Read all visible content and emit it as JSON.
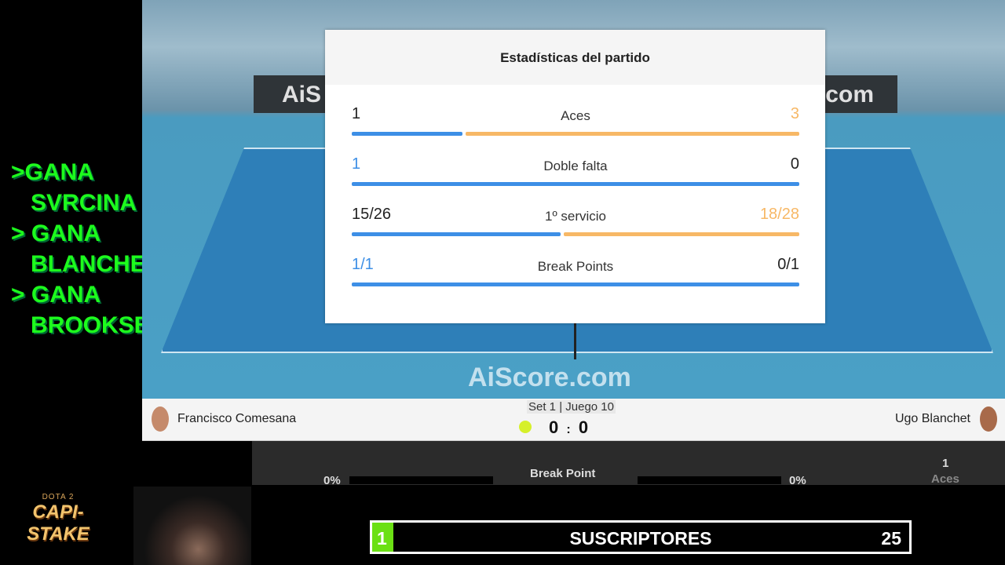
{
  "stream": {
    "picks": [
      ">GANA",
      "   SVRCINA",
      "> GANA",
      "   BLANCHET",
      "> GANA",
      "   BROOKSBY"
    ],
    "logo": {
      "top": "DOTA 2",
      "name": "CAPI-STAKE"
    },
    "subscribers": {
      "label": "SUSCRIPTORES",
      "current": "1",
      "goal": "25",
      "progress": 0.04,
      "fill_color": "#6be014"
    }
  },
  "match": {
    "banner_text": "AiS",
    "banner_text_right": ".com",
    "watermark": "AiScore.com",
    "player_left": "Francisco Comesana",
    "player_right": "Ugo Blanchet",
    "set_info": "Set 1 | Juego 10",
    "score_left": "0",
    "score_sep": ":",
    "score_right": "0",
    "lower": {
      "left_pct": "0%",
      "label": "Break Point",
      "right_pct": "0%",
      "aces_value": "1",
      "aces_label": "Aces"
    }
  },
  "stats": {
    "title": "Estadísticas del partido",
    "colors": {
      "left": "#3d8fe6",
      "right": "#f7b866"
    },
    "rows": [
      {
        "label": "Aces",
        "left": "1",
        "right": "3",
        "left_share": 0.25,
        "left_highlight": false,
        "right_highlight": true
      },
      {
        "label": "Doble falta",
        "left": "1",
        "right": "0",
        "left_share": 1,
        "left_highlight": true,
        "right_highlight": false
      },
      {
        "label": "1º servicio",
        "left": "15/26",
        "right": "18/28",
        "left_share": 0.47,
        "left_highlight": false,
        "right_highlight": true
      },
      {
        "label": "Break Points",
        "left": "1/1",
        "right": "0/1",
        "left_share": 1,
        "left_highlight": true,
        "right_highlight": false
      }
    ]
  }
}
